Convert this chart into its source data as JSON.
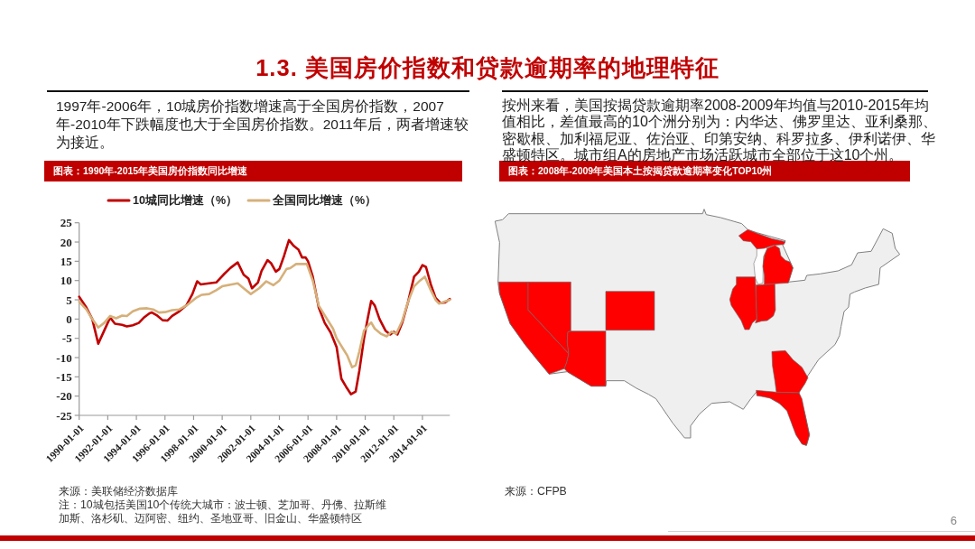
{
  "chart_data": [
    {
      "type": "other",
      "title": "1.3. 美国房价指数和贷款逾期率的地理特征",
      "annotations": [
        "6"
      ]
    },
    {
      "type": "line",
      "title": "图表：1990年-2015年美国房价指数同比增速",
      "annotations": [
        "1997年-2006年，10城房价指数增速高于全国房价指数，2007年-2010年下跌幅度也大于全国房价指数。2011年后，两者增速较为接近。",
        "来源：美联储经济数据库",
        "注：10城包括美国10个传统大城市：波士顿、芝加哥、丹佛、拉斯维加斯、洛杉矶、迈阿密、纽约、圣地亚哥、旧金山、华盛顿特区"
      ],
      "xlim": [
        "1990-01-01",
        "2015-12-01"
      ],
      "xticks": [
        "1990-01-01",
        "1992-01-01",
        "1994-01-01",
        "1996-01-01",
        "1998-01-01",
        "2000-01-01",
        "2002-01-01",
        "2004-01-01",
        "2006-01-01",
        "2008-01-01",
        "2010-01-01",
        "2012-01-01",
        "2014-01-01"
      ],
      "ylim": [
        -25,
        25
      ],
      "yticks": [
        -25,
        -20,
        -15,
        -10,
        -5,
        0,
        5,
        10,
        15,
        20,
        25
      ],
      "legend": "top",
      "series": [
        {
          "name": "10城同比增速（%）",
          "color": "#c00000",
          "x": [
            "1990-01-01",
            "1990-07-01",
            "1990-12-01",
            "1991-05-01",
            "1991-10-01",
            "1992-03-01",
            "1992-07-01",
            "1993-01-01",
            "1993-05-01",
            "1993-10-01",
            "1994-03-01",
            "1994-07-01",
            "1994-12-01",
            "1995-02-01",
            "1995-06-01",
            "1995-11-01",
            "1996-03-01",
            "1996-07-01",
            "1997-01-01",
            "1997-07-01",
            "1997-12-01",
            "1998-04-01",
            "1998-07-01",
            "1999-02-01",
            "1999-08-01",
            "2000-03-01",
            "2000-08-01",
            "2001-02-01",
            "2001-07-01",
            "2001-11-01",
            "2002-02-01",
            "2002-07-01",
            "2002-10-01",
            "2003-03-01",
            "2003-06-01",
            "2003-10-01",
            "2004-01-01",
            "2004-05-01",
            "2004-09-01",
            "2005-01-01",
            "2005-05-01",
            "2005-08-01",
            "2005-11-01",
            "2006-01-01",
            "2006-05-01",
            "2006-10-01",
            "2007-03-01",
            "2007-08-01",
            "2008-01-01",
            "2008-05-01",
            "2008-09-01",
            "2009-01-01",
            "2009-05-01",
            "2009-08-01",
            "2009-12-01",
            "2010-03-01",
            "2010-06-01",
            "2010-09-01",
            "2011-01-01",
            "2011-06-01",
            "2011-10-01",
            "2012-01-01",
            "2012-04-01",
            "2012-08-01",
            "2013-01-01",
            "2013-06-01",
            "2013-10-01",
            "2014-01-01",
            "2014-04-01",
            "2014-08-01",
            "2014-12-01",
            "2015-04-01",
            "2015-08-01",
            "2015-12-01"
          ],
          "values": [
            5.8,
            3.0,
            0.0,
            -6.4,
            -3.0,
            0.4,
            -1.2,
            -1.5,
            -1.9,
            -1.6,
            -1.0,
            0.3,
            1.5,
            1.7,
            1.0,
            -0.3,
            -0.4,
            0.8,
            2.0,
            3.6,
            6.5,
            9.8,
            9.0,
            9.3,
            9.5,
            11.8,
            13.3,
            14.7,
            11.5,
            10.5,
            8.0,
            9.5,
            12.5,
            15.3,
            14.5,
            12.3,
            13.0,
            16.5,
            20.5,
            19.0,
            18.0,
            16.0,
            16.0,
            15.0,
            11.0,
            3.0,
            -1.0,
            -3.5,
            -7.3,
            -15.5,
            -17.6,
            -19.5,
            -18.8,
            -13.5,
            -5.0,
            0.0,
            4.7,
            3.5,
            0.0,
            -3.0,
            -4.0,
            -3.3,
            -4.0,
            -1.0,
            4.5,
            11.0,
            12.3,
            14.0,
            13.5,
            9.0,
            5.5,
            4.2,
            4.3,
            5.2
          ]
        },
        {
          "name": "全国同比增速（%）",
          "color": "#d6b07a",
          "x": [
            "1990-01-01",
            "1990-07-01",
            "1990-12-01",
            "1991-05-01",
            "1991-10-01",
            "1992-03-01",
            "1992-08-01",
            "1993-01-01",
            "1993-05-01",
            "1993-10-01",
            "1994-04-01",
            "1994-10-01",
            "1995-03-01",
            "1995-08-01",
            "1996-01-01",
            "1996-07-01",
            "1997-01-01",
            "1997-07-01",
            "1998-03-01",
            "1998-08-01",
            "1999-02-01",
            "1999-08-01",
            "2000-01-01",
            "2000-09-01",
            "2001-02-01",
            "2001-07-01",
            "2002-01-01",
            "2002-08-01",
            "2003-02-01",
            "2003-08-01",
            "2004-01-01",
            "2004-07-01",
            "2004-10-01",
            "2005-03-01",
            "2005-12-01",
            "2006-05-01",
            "2006-10-01",
            "2007-03-01",
            "2007-10-01",
            "2008-01-01",
            "2008-07-01",
            "2008-10-01",
            "2009-02-01",
            "2009-05-01",
            "2009-08-01",
            "2009-12-01",
            "2010-04-01",
            "2010-06-01",
            "2010-09-01",
            "2011-02-01",
            "2011-07-01",
            "2011-11-01",
            "2012-03-01",
            "2012-08-01",
            "2013-01-01",
            "2013-06-01",
            "2013-11-01",
            "2014-03-01",
            "2014-08-01",
            "2014-12-01",
            "2015-03-01",
            "2015-12-01"
          ],
          "values": [
            4.5,
            2.5,
            0.0,
            -2.2,
            -1.0,
            0.8,
            0.2,
            0.9,
            0.8,
            2.0,
            2.7,
            2.8,
            2.5,
            1.7,
            1.8,
            2.3,
            2.5,
            3.5,
            5.5,
            6.3,
            6.5,
            7.5,
            8.5,
            9.0,
            9.3,
            8.0,
            6.5,
            8.0,
            9.8,
            8.8,
            10.0,
            13.0,
            13.2,
            14.3,
            14.3,
            10.0,
            3.5,
            1.0,
            -2.5,
            -5.0,
            -8.0,
            -9.5,
            -12.5,
            -12.0,
            -8.5,
            -3.0,
            -1.5,
            -0.9,
            -2.5,
            -3.8,
            -4.5,
            -3.3,
            -3.8,
            -0.5,
            4.5,
            8.5,
            10.0,
            11.0,
            7.5,
            5.0,
            4.0,
            5.0
          ]
        }
      ]
    },
    {
      "type": "other",
      "title": "图表：2008年-2009年美国本土按揭贷款逾期率变化TOP10州",
      "annotations": [
        "按州来看，美国按揭贷款逾期率2008-2009年均值与2010-2015年均值相比，差值最高的10个洲分别为：内华达、佛罗里达、亚利桑那、密歇根、加利福尼亚、佐治亚、印第安纳、科罗拉多、伊利诺伊、华盛顿特区。城市组A的房地产市场活跃城市全部位于这10个州。",
        "来源：CFPB"
      ]
    }
  ]
}
